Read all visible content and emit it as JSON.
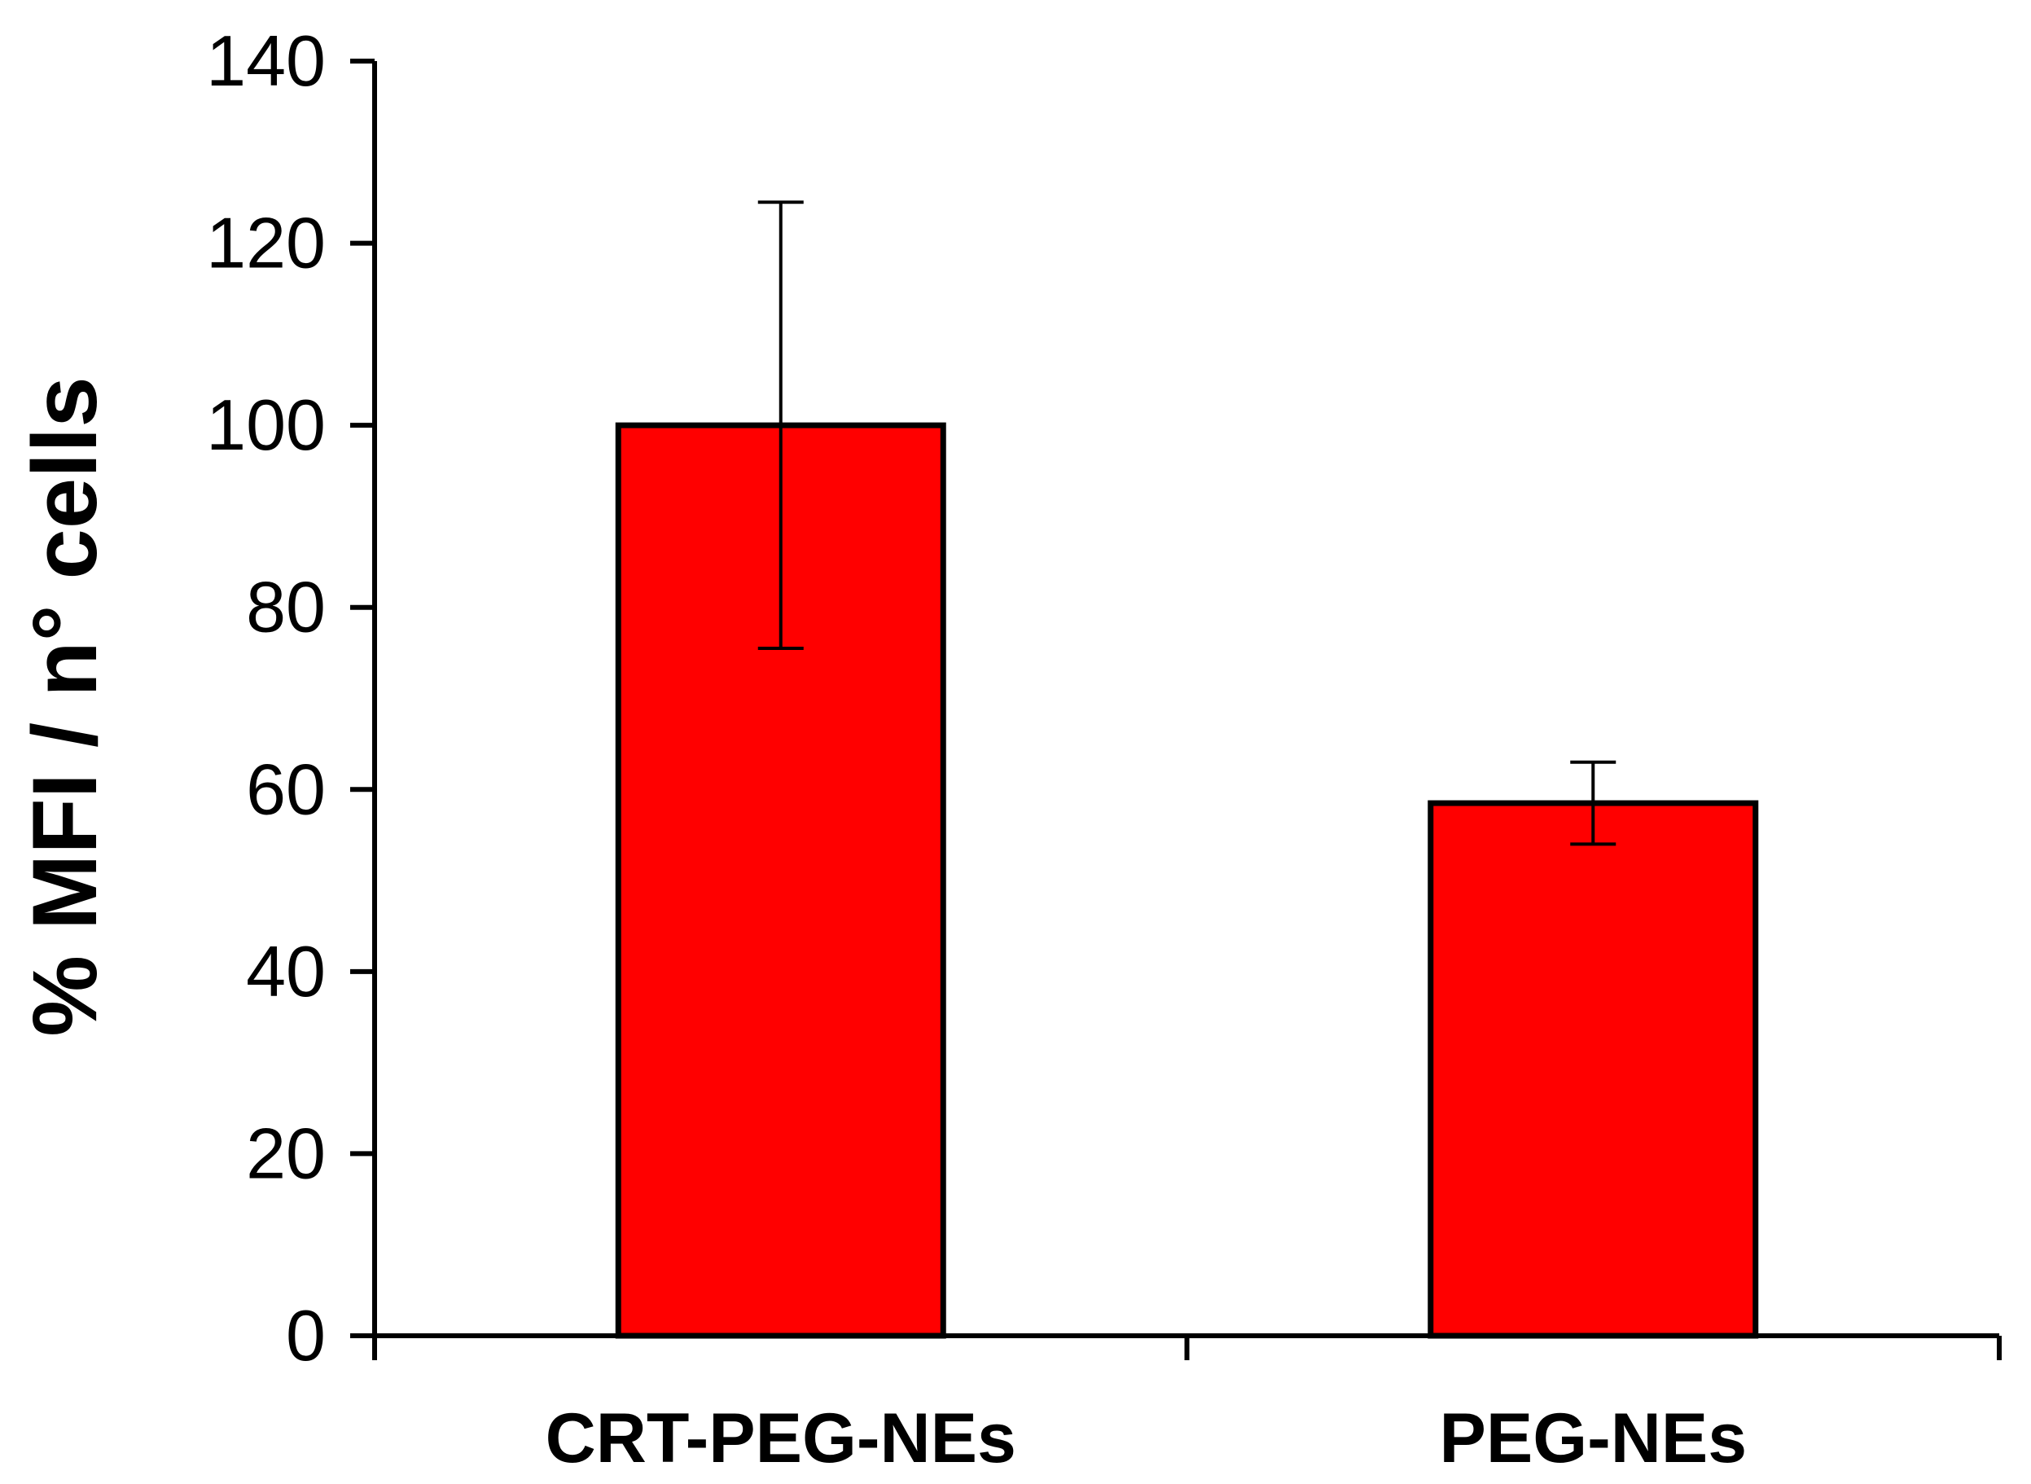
{
  "chart_data": {
    "type": "bar",
    "title": "",
    "xlabel": "",
    "ylabel": "% MFI / n° cells",
    "categories": [
      "CRT-PEG-NEs",
      "PEG-NEs"
    ],
    "values": [
      100,
      58.5
    ],
    "error_bars": [
      {
        "low": 75.5,
        "high": 124.5
      },
      {
        "low": 54,
        "high": 63
      }
    ],
    "ylim": [
      0,
      140
    ],
    "yticks": [
      0,
      20,
      40,
      60,
      80,
      100,
      120,
      140
    ],
    "ytick_labels": [
      "0",
      "20",
      "40",
      "60",
      "80",
      "100",
      "120",
      "140"
    ],
    "grid": false,
    "legend": "none",
    "colors": {
      "bar_fill": "#ff0000",
      "bar_stroke": "#000000",
      "axis": "#000000"
    }
  }
}
